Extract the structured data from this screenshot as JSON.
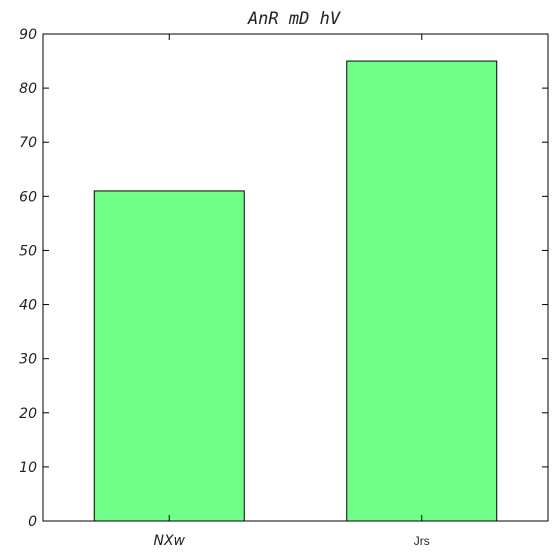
{
  "chart_data": {
    "type": "bar",
    "title": "AnR  mD hV",
    "xlabel": "",
    "ylabel": "",
    "categories": [
      "NXw",
      "Jrs"
    ],
    "values": [
      61,
      85
    ],
    "ylim": [
      0,
      90
    ],
    "yticks": [
      0,
      10,
      20,
      30,
      40,
      50,
      60,
      70,
      80,
      90
    ],
    "grid": false,
    "legend": "none",
    "bar_color": "#70ff88",
    "bar_edge_color": "#000000"
  }
}
